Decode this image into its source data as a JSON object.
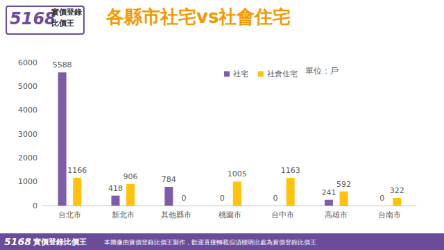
{
  "chart_data": {
    "type": "bar",
    "title": "各縣市社宅vs社會住宅",
    "annotations": [
      "單位：戶"
    ],
    "categories": [
      "台北市",
      "新北市",
      "其他縣市",
      "桃園市",
      "台中市",
      "高雄市",
      "台南市"
    ],
    "series": [
      {
        "name": "社宅",
        "color": "#7E5CA8",
        "values": [
          5588,
          418,
          784,
          0,
          0,
          241,
          0
        ]
      },
      {
        "name": "社會住宅",
        "color": "#FFC20E",
        "values": [
          1166,
          906,
          0,
          1005,
          1163,
          592,
          322
        ]
      }
    ],
    "ylim": [
      0,
      6000
    ],
    "yticks": [
      0,
      1000,
      2000,
      3000,
      4000,
      5000,
      6000
    ],
    "grid": false,
    "legend": "top",
    "data_labels": true
  },
  "logo": {
    "number": "5168",
    "lines": [
      "實價登錄",
      "比價王"
    ]
  },
  "footer": {
    "number": "5168",
    "name": "實價登錄比價王",
    "note": "本圖像由實價登錄比價王製作，歡迎直接轉載但須標明出處為實價登錄比價王"
  }
}
